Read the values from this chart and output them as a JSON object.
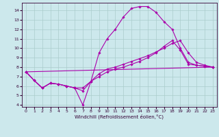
{
  "xlabel": "Windchill (Refroidissement éolien,°C)",
  "bg_color": "#cce8ec",
  "grid_color": "#aacccc",
  "line_color": "#aa00aa",
  "xlim": [
    -0.5,
    23.5
  ],
  "ylim": [
    3.8,
    14.8
  ],
  "yticks": [
    4,
    5,
    6,
    7,
    8,
    9,
    10,
    11,
    12,
    13,
    14
  ],
  "xticks": [
    0,
    1,
    2,
    3,
    4,
    5,
    6,
    7,
    8,
    9,
    10,
    11,
    12,
    13,
    14,
    15,
    16,
    17,
    18,
    19,
    20,
    21,
    22,
    23
  ],
  "lines": [
    {
      "x": [
        0,
        1,
        2,
        3,
        4,
        5,
        6,
        7,
        8,
        9,
        10,
        11,
        12,
        13,
        14,
        15,
        16,
        17,
        18,
        19,
        20,
        21,
        22,
        23
      ],
      "y": [
        7.5,
        6.6,
        5.8,
        6.3,
        6.2,
        6.0,
        5.8,
        4.0,
        6.5,
        9.5,
        11.0,
        12.0,
        13.3,
        14.2,
        14.4,
        14.4,
        13.8,
        12.8,
        12.0,
        10.0,
        8.5,
        8.2,
        8.1,
        8.0
      ]
    },
    {
      "x": [
        0,
        1,
        2,
        3,
        4,
        5,
        6,
        7,
        8,
        9,
        10,
        11,
        12,
        13,
        14,
        15,
        16,
        17,
        18,
        19,
        20,
        21,
        22,
        23
      ],
      "y": [
        7.5,
        6.6,
        5.8,
        6.3,
        6.2,
        6.0,
        5.8,
        5.8,
        6.5,
        7.3,
        7.8,
        8.0,
        8.3,
        8.6,
        8.9,
        9.2,
        9.6,
        10.0,
        10.5,
        10.8,
        9.5,
        8.5,
        8.2,
        8.0
      ]
    },
    {
      "x": [
        0,
        23
      ],
      "y": [
        7.5,
        8.0
      ]
    },
    {
      "x": [
        0,
        1,
        2,
        3,
        4,
        5,
        6,
        7,
        8,
        9,
        10,
        11,
        12,
        13,
        14,
        15,
        16,
        17,
        18,
        19,
        20,
        21,
        22,
        23
      ],
      "y": [
        7.5,
        6.6,
        5.8,
        6.3,
        6.2,
        6.0,
        5.8,
        5.5,
        6.5,
        7.0,
        7.5,
        7.8,
        8.0,
        8.3,
        8.6,
        9.0,
        9.5,
        10.2,
        10.8,
        9.8,
        8.3,
        8.2,
        8.1,
        8.0
      ]
    }
  ]
}
